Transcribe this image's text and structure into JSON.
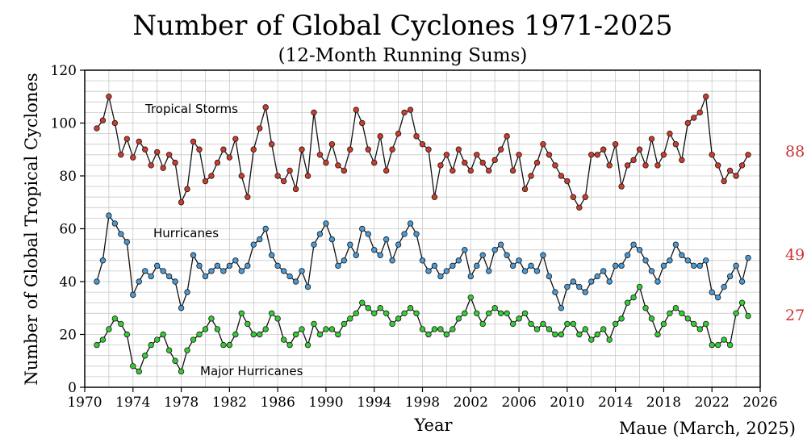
{
  "chart_data": {
    "type": "line",
    "title": "Number of Global Cyclones 1971-2025",
    "subtitle": "(12-Month Running Sums)",
    "xlabel": "Year",
    "ylabel": "Number of Global Tropical Cyclones",
    "credit": "Maue (March, 2025)",
    "xlim": [
      1970,
      2026
    ],
    "ylim": [
      0,
      120
    ],
    "x_ticks": [
      "1970",
      "1974",
      "1978",
      "1982",
      "1986",
      "1990",
      "1994",
      "1998",
      "2002",
      "2006",
      "2010",
      "2014",
      "2018",
      "2022",
      "2026"
    ],
    "y_ticks": [
      "0",
      "20",
      "40",
      "60",
      "80",
      "100",
      "120"
    ],
    "grid": true,
    "series": [
      {
        "name": "Tropical Storms",
        "color": "#cc3b2e",
        "end_label": "88",
        "x": [
          1971,
          1971.5,
          1972,
          1972.5,
          1973,
          1973.5,
          1974,
          1974.5,
          1975,
          1975.5,
          1976,
          1976.5,
          1977,
          1977.5,
          1978,
          1978.5,
          1979,
          1979.5,
          1980,
          1980.5,
          1981,
          1981.5,
          1982,
          1982.5,
          1983,
          1983.5,
          1984,
          1984.5,
          1985,
          1985.5,
          1986,
          1986.5,
          1987,
          1987.5,
          1988,
          1988.5,
          1989,
          1989.5,
          1990,
          1990.5,
          1991,
          1991.5,
          1992,
          1992.5,
          1993,
          1993.5,
          1994,
          1994.5,
          1995,
          1995.5,
          1996,
          1996.5,
          1997,
          1997.5,
          1998,
          1998.5,
          1999,
          1999.5,
          2000,
          2000.5,
          2001,
          2001.5,
          2002,
          2002.5,
          2003,
          2003.5,
          2004,
          2004.5,
          2005,
          2005.5,
          2006,
          2006.5,
          2007,
          2007.5,
          2008,
          2008.5,
          2009,
          2009.5,
          2010,
          2010.5,
          2011,
          2011.5,
          2012,
          2012.5,
          2013,
          2013.5,
          2014,
          2014.5,
          2015,
          2015.5,
          2016,
          2016.5,
          2017,
          2017.5,
          2018,
          2018.5,
          2019,
          2019.5,
          2020,
          2020.5,
          2021,
          2021.5,
          2022,
          2022.5,
          2023,
          2023.5,
          2024,
          2024.5,
          2025
        ],
        "y": [
          98,
          101,
          110,
          100,
          88,
          94,
          87,
          93,
          90,
          84,
          89,
          83,
          88,
          85,
          70,
          75,
          93,
          90,
          78,
          80,
          85,
          90,
          87,
          94,
          80,
          72,
          90,
          98,
          106,
          92,
          80,
          78,
          82,
          75,
          90,
          80,
          104,
          88,
          85,
          92,
          84,
          82,
          90,
          105,
          100,
          90,
          85,
          95,
          82,
          90,
          96,
          104,
          105,
          95,
          92,
          90,
          72,
          84,
          88,
          82,
          90,
          85,
          82,
          88,
          85,
          82,
          86,
          90,
          95,
          82,
          88,
          75,
          80,
          85,
          92,
          88,
          84,
          80,
          78,
          72,
          68,
          72,
          88,
          88,
          90,
          84,
          92,
          76,
          84,
          86,
          90,
          84,
          94,
          84,
          88,
          96,
          92,
          86,
          100,
          102,
          104,
          110,
          88,
          84,
          78,
          82,
          80,
          84,
          88
        ]
      },
      {
        "name": "Hurricanes",
        "color": "#4a98d4",
        "end_label": "49",
        "x": [
          1971,
          1971.5,
          1972,
          1972.5,
          1973,
          1973.5,
          1974,
          1974.5,
          1975,
          1975.5,
          1976,
          1976.5,
          1977,
          1977.5,
          1978,
          1978.5,
          1979,
          1979.5,
          1980,
          1980.5,
          1981,
          1981.5,
          1982,
          1982.5,
          1983,
          1983.5,
          1984,
          1984.5,
          1985,
          1985.5,
          1986,
          1986.5,
          1987,
          1987.5,
          1988,
          1988.5,
          1989,
          1989.5,
          1990,
          1990.5,
          1991,
          1991.5,
          1992,
          1992.5,
          1993,
          1993.5,
          1994,
          1994.5,
          1995,
          1995.5,
          1996,
          1996.5,
          1997,
          1997.5,
          1998,
          1998.5,
          1999,
          1999.5,
          2000,
          2000.5,
          2001,
          2001.5,
          2002,
          2002.5,
          2003,
          2003.5,
          2004,
          2004.5,
          2005,
          2005.5,
          2006,
          2006.5,
          2007,
          2007.5,
          2008,
          2008.5,
          2009,
          2009.5,
          2010,
          2010.5,
          2011,
          2011.5,
          2012,
          2012.5,
          2013,
          2013.5,
          2014,
          2014.5,
          2015,
          2015.5,
          2016,
          2016.5,
          2017,
          2017.5,
          2018,
          2018.5,
          2019,
          2019.5,
          2020,
          2020.5,
          2021,
          2021.5,
          2022,
          2022.5,
          2023,
          2023.5,
          2024,
          2024.5,
          2025
        ],
        "y": [
          40,
          48,
          65,
          62,
          58,
          55,
          35,
          40,
          44,
          42,
          46,
          44,
          42,
          40,
          30,
          36,
          50,
          46,
          42,
          44,
          46,
          44,
          46,
          48,
          44,
          46,
          54,
          56,
          60,
          50,
          46,
          44,
          42,
          40,
          44,
          38,
          54,
          58,
          62,
          56,
          46,
          48,
          54,
          50,
          60,
          58,
          52,
          50,
          56,
          48,
          54,
          58,
          62,
          58,
          48,
          44,
          46,
          42,
          44,
          46,
          48,
          52,
          42,
          46,
          50,
          44,
          52,
          54,
          50,
          46,
          48,
          44,
          46,
          44,
          50,
          42,
          36,
          30,
          38,
          40,
          38,
          36,
          40,
          42,
          44,
          40,
          46,
          46,
          50,
          54,
          52,
          48,
          44,
          40,
          46,
          48,
          54,
          50,
          48,
          46,
          46,
          48,
          36,
          34,
          38,
          42,
          46,
          40,
          49
        ]
      },
      {
        "name": "Major Hurricanes",
        "color": "#33cc33",
        "end_label": "27",
        "x": [
          1971,
          1971.5,
          1972,
          1972.5,
          1973,
          1973.5,
          1974,
          1974.5,
          1975,
          1975.5,
          1976,
          1976.5,
          1977,
          1977.5,
          1978,
          1978.5,
          1979,
          1979.5,
          1980,
          1980.5,
          1981,
          1981.5,
          1982,
          1982.5,
          1983,
          1983.5,
          1984,
          1984.5,
          1985,
          1985.5,
          1986,
          1986.5,
          1987,
          1987.5,
          1988,
          1988.5,
          1989,
          1989.5,
          1990,
          1990.5,
          1991,
          1991.5,
          1992,
          1992.5,
          1993,
          1993.5,
          1994,
          1994.5,
          1995,
          1995.5,
          1996,
          1996.5,
          1997,
          1997.5,
          1998,
          1998.5,
          1999,
          1999.5,
          2000,
          2000.5,
          2001,
          2001.5,
          2002,
          2002.5,
          2003,
          2003.5,
          2004,
          2004.5,
          2005,
          2005.5,
          2006,
          2006.5,
          2007,
          2007.5,
          2008,
          2008.5,
          2009,
          2009.5,
          2010,
          2010.5,
          2011,
          2011.5,
          2012,
          2012.5,
          2013,
          2013.5,
          2014,
          2014.5,
          2015,
          2015.5,
          2016,
          2016.5,
          2017,
          2017.5,
          2018,
          2018.5,
          2019,
          2019.5,
          2020,
          2020.5,
          2021,
          2021.5,
          2022,
          2022.5,
          2023,
          2023.5,
          2024,
          2024.5,
          2025
        ],
        "y": [
          16,
          18,
          22,
          26,
          24,
          20,
          8,
          6,
          12,
          16,
          18,
          20,
          14,
          10,
          6,
          14,
          18,
          20,
          22,
          26,
          22,
          16,
          16,
          20,
          28,
          24,
          20,
          20,
          22,
          28,
          26,
          18,
          16,
          20,
          22,
          16,
          24,
          20,
          22,
          22,
          20,
          24,
          26,
          28,
          32,
          30,
          28,
          30,
          28,
          24,
          26,
          28,
          30,
          28,
          22,
          20,
          22,
          22,
          20,
          22,
          26,
          28,
          34,
          28,
          24,
          28,
          30,
          28,
          28,
          24,
          26,
          28,
          24,
          22,
          24,
          22,
          20,
          20,
          24,
          24,
          20,
          22,
          18,
          20,
          22,
          18,
          24,
          26,
          32,
          34,
          38,
          30,
          26,
          20,
          24,
          28,
          30,
          28,
          26,
          24,
          22,
          24,
          16,
          16,
          18,
          16,
          28,
          32,
          27
        ]
      }
    ]
  }
}
